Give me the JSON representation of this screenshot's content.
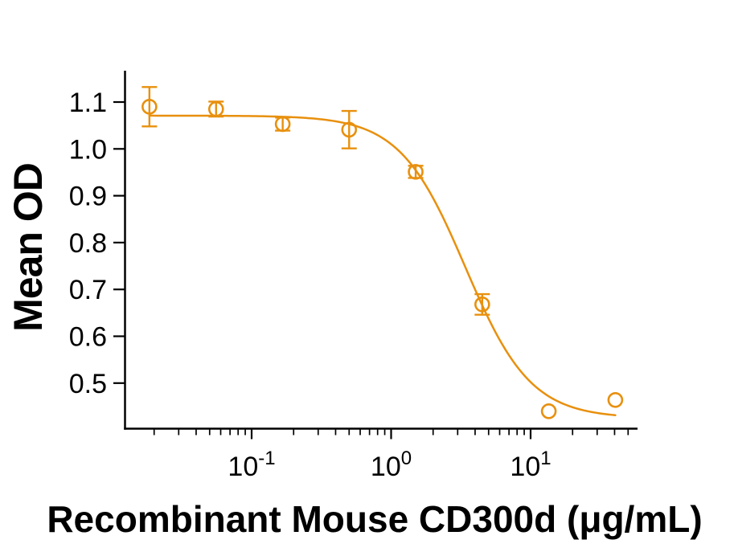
{
  "figure": {
    "background": "#ffffff",
    "axis_color": "#000000",
    "accent_color": "#E8900E"
  },
  "chart_data": {
    "type": "scatter",
    "title": "",
    "xlabel": "Recombinant Mouse CD300d (μg/mL)",
    "ylabel": "Mean OD",
    "x_scale": "log10",
    "y_scale": "linear",
    "xlim": [
      0.0123,
      58.5
    ],
    "ylim": [
      0.404,
      1.167
    ],
    "grid": false,
    "legend": "none",
    "x_major_ticks": [
      {
        "value": 0.1,
        "base": "10",
        "exponent": "-1"
      },
      {
        "value": 1,
        "base": "10",
        "exponent": "0"
      },
      {
        "value": 10,
        "base": "10",
        "exponent": "1"
      }
    ],
    "y_ticks": [
      0.5,
      0.6,
      0.7,
      0.8,
      0.9,
      1.0,
      1.1
    ],
    "series": [
      {
        "name": "Mean OD",
        "marker": "open-circle",
        "color": "#E8900E",
        "points": [
          {
            "x": 0.0185,
            "y": 1.09,
            "err": 0.042
          },
          {
            "x": 0.0556,
            "y": 1.085,
            "err": 0.016
          },
          {
            "x": 0.167,
            "y": 1.053,
            "err": 0.014
          },
          {
            "x": 0.5,
            "y": 1.041,
            "err": 0.04
          },
          {
            "x": 1.5,
            "y": 0.951,
            "err": 0.013
          },
          {
            "x": 4.5,
            "y": 0.668,
            "err": 0.022
          },
          {
            "x": 13.5,
            "y": 0.44,
            "err": 0
          },
          {
            "x": 40.5,
            "y": 0.464,
            "err": 0
          }
        ]
      }
    ],
    "fit_curve": {
      "model": "4PL",
      "top": 1.071,
      "bottom": 0.425,
      "ec50": 3.4,
      "hill": 1.85,
      "x_start": 0.0185,
      "x_end": 40.5,
      "color": "#E8900E"
    }
  }
}
